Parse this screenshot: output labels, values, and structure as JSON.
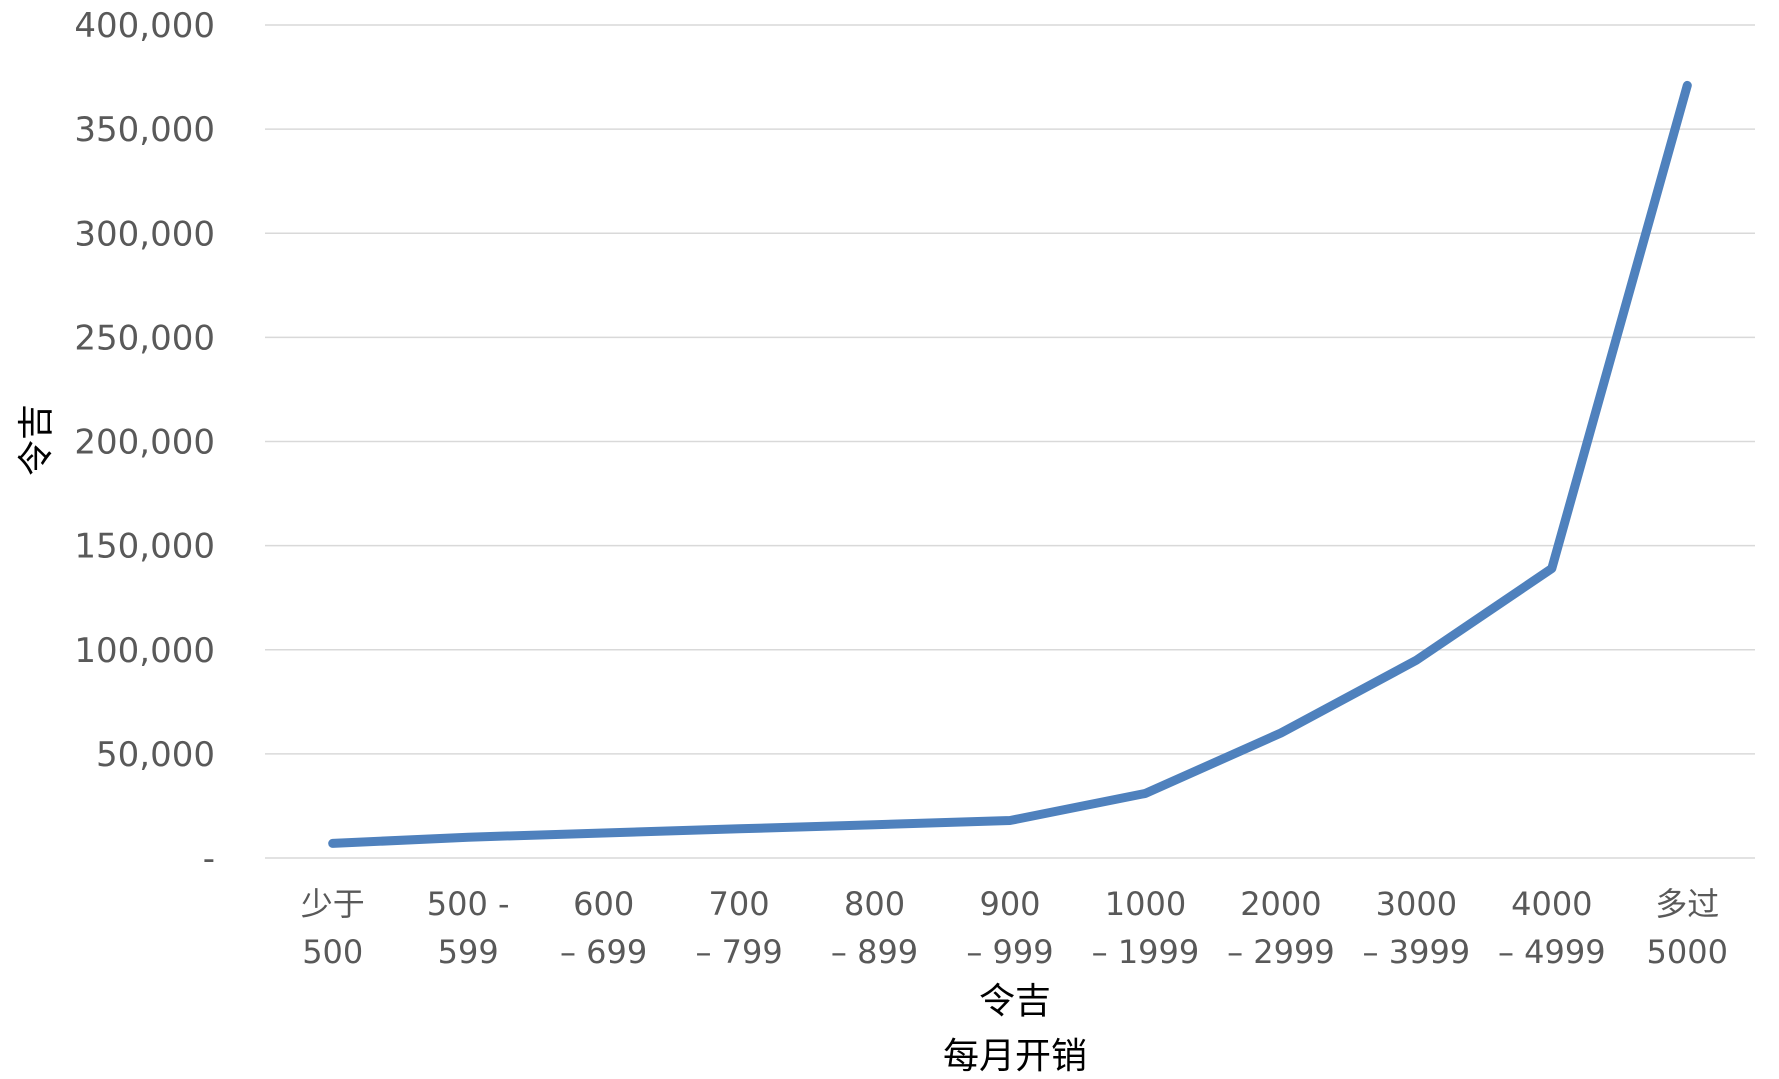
{
  "chart_data": {
    "type": "line",
    "categories": [
      [
        "少于",
        "500"
      ],
      [
        "500 -",
        "599"
      ],
      [
        "600",
        "– 699"
      ],
      [
        "700",
        "– 799"
      ],
      [
        "800",
        "– 899"
      ],
      [
        "900",
        "– 999"
      ],
      [
        "1000",
        "– 1999"
      ],
      [
        "2000",
        "– 2999"
      ],
      [
        "3000",
        "– 3999"
      ],
      [
        "4000",
        "– 4999"
      ],
      [
        "多过",
        "5000"
      ]
    ],
    "series": [
      {
        "values": [
          7000,
          10000,
          12000,
          14000,
          16000,
          18000,
          31000,
          60000,
          95000,
          139000,
          371000
        ],
        "color": "#4f81bd"
      }
    ],
    "ylim": [
      0,
      400000
    ],
    "yticks": [
      0,
      50000,
      100000,
      150000,
      200000,
      250000,
      300000,
      350000,
      400000
    ],
    "ytick_labels": [
      "-",
      "50,000",
      "100,000",
      "150,000",
      "200,000",
      "250,000",
      "300,000",
      "350,000",
      "400,000"
    ],
    "ylabel": "令吉",
    "xlabel": "令吉",
    "xlabel2": "每月开销",
    "grid": true,
    "legend": "none"
  }
}
